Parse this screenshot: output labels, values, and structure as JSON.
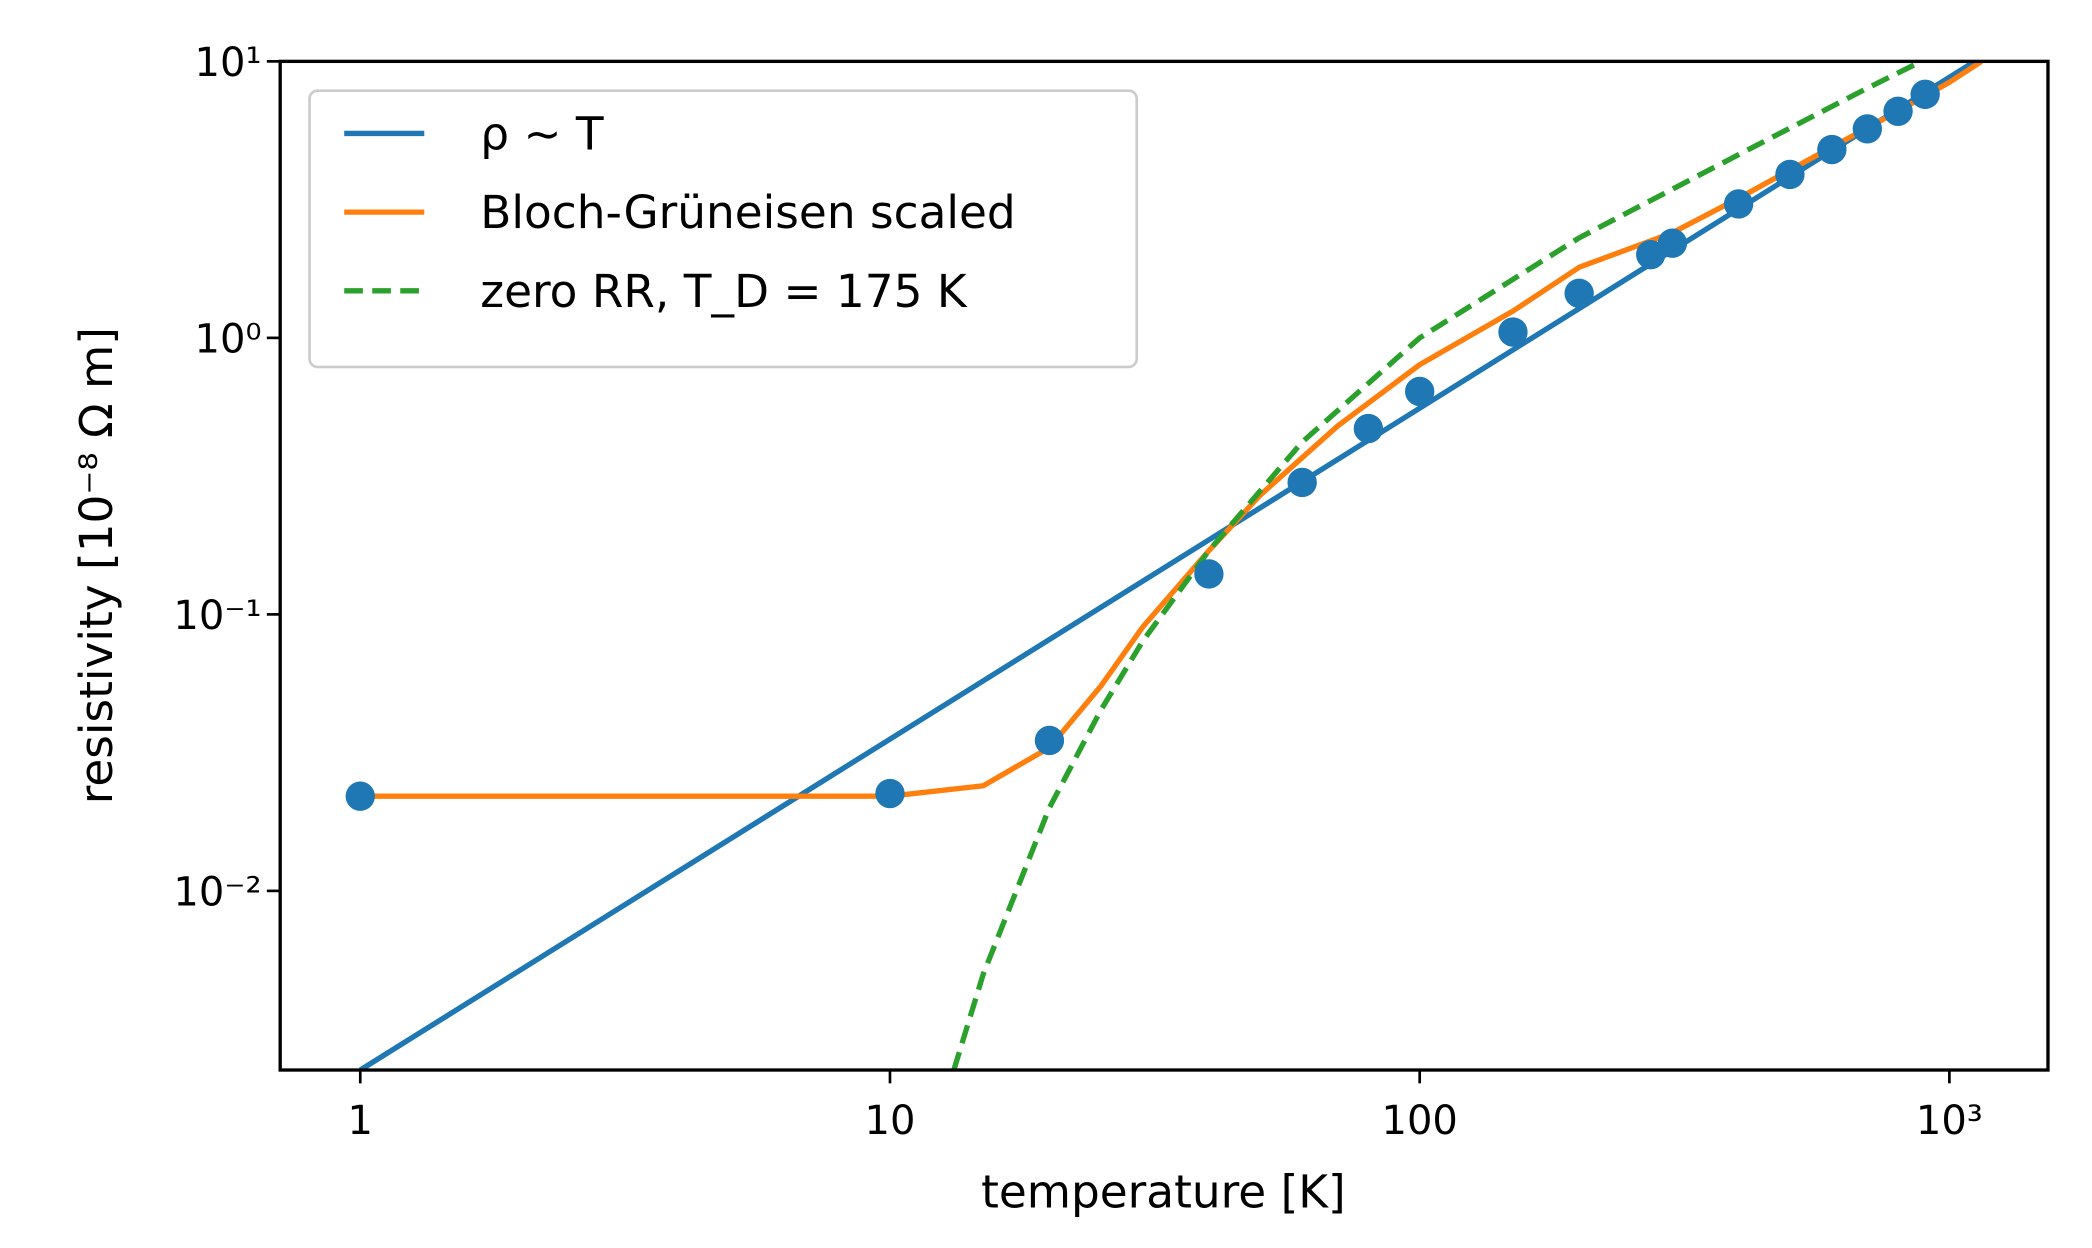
{
  "chart_data": {
    "type": "line",
    "xlabel": "temperature [K]",
    "ylabel": "resistivity [10⁻⁸ Ω m]",
    "xscale": "log",
    "yscale": "log",
    "xlim": [
      0.706,
      1535
    ],
    "ylim": [
      0.00225,
      10
    ],
    "xticks": [
      1,
      10,
      100,
      {
        "value": 1000,
        "label": "10³"
      }
    ],
    "yticks": [
      {
        "value": 0.01,
        "label": "10⁻²"
      },
      {
        "value": 0.1,
        "label": "10⁻¹"
      },
      {
        "value": 1,
        "label": "10⁰"
      },
      {
        "value": 10,
        "label": "10¹"
      }
    ],
    "legend": "upper left",
    "series": [
      {
        "name": "ρ ∼ T",
        "color": "#1f77b4",
        "style": "solid",
        "x": [
          1,
          1117
        ],
        "values": [
          0.00225,
          10
        ]
      },
      {
        "name": "Bloch-Grüneisen scaled",
        "color": "#ff7f0e",
        "style": "solid",
        "x": [
          1,
          10,
          15,
          20,
          25,
          30,
          40,
          50,
          70,
          100,
          150,
          200,
          300,
          400,
          600,
          800,
          1000,
          1150
        ],
        "values": [
          0.022,
          0.022,
          0.024,
          0.033,
          0.055,
          0.09,
          0.17,
          0.27,
          0.48,
          0.8,
          1.25,
          1.8,
          2.4,
          3.2,
          4.9,
          6.6,
          8.4,
          10
        ]
      },
      {
        "name": "zero RR, T_D = 175 K",
        "color": "#2ca02c",
        "style": "dashed",
        "x": [
          13.2,
          15,
          20,
          25,
          30,
          40,
          60,
          100,
          200,
          400,
          700,
          885
        ],
        "values": [
          0.00225,
          0.005,
          0.02,
          0.045,
          0.08,
          0.17,
          0.42,
          1.0,
          2.3,
          4.6,
          8,
          10
        ]
      },
      {
        "color": "#1f77b4",
        "style": "marker",
        "x": [
          1,
          10,
          20,
          40,
          60,
          80,
          100,
          150,
          200,
          273,
          300,
          400,
          500,
          600,
          700,
          800,
          900
        ],
        "values": [
          0.022,
          0.0225,
          0.035,
          0.14,
          0.3,
          0.47,
          0.64,
          1.05,
          1.45,
          2.0,
          2.2,
          3.05,
          3.9,
          4.8,
          5.7,
          6.6,
          7.6
        ]
      }
    ]
  }
}
